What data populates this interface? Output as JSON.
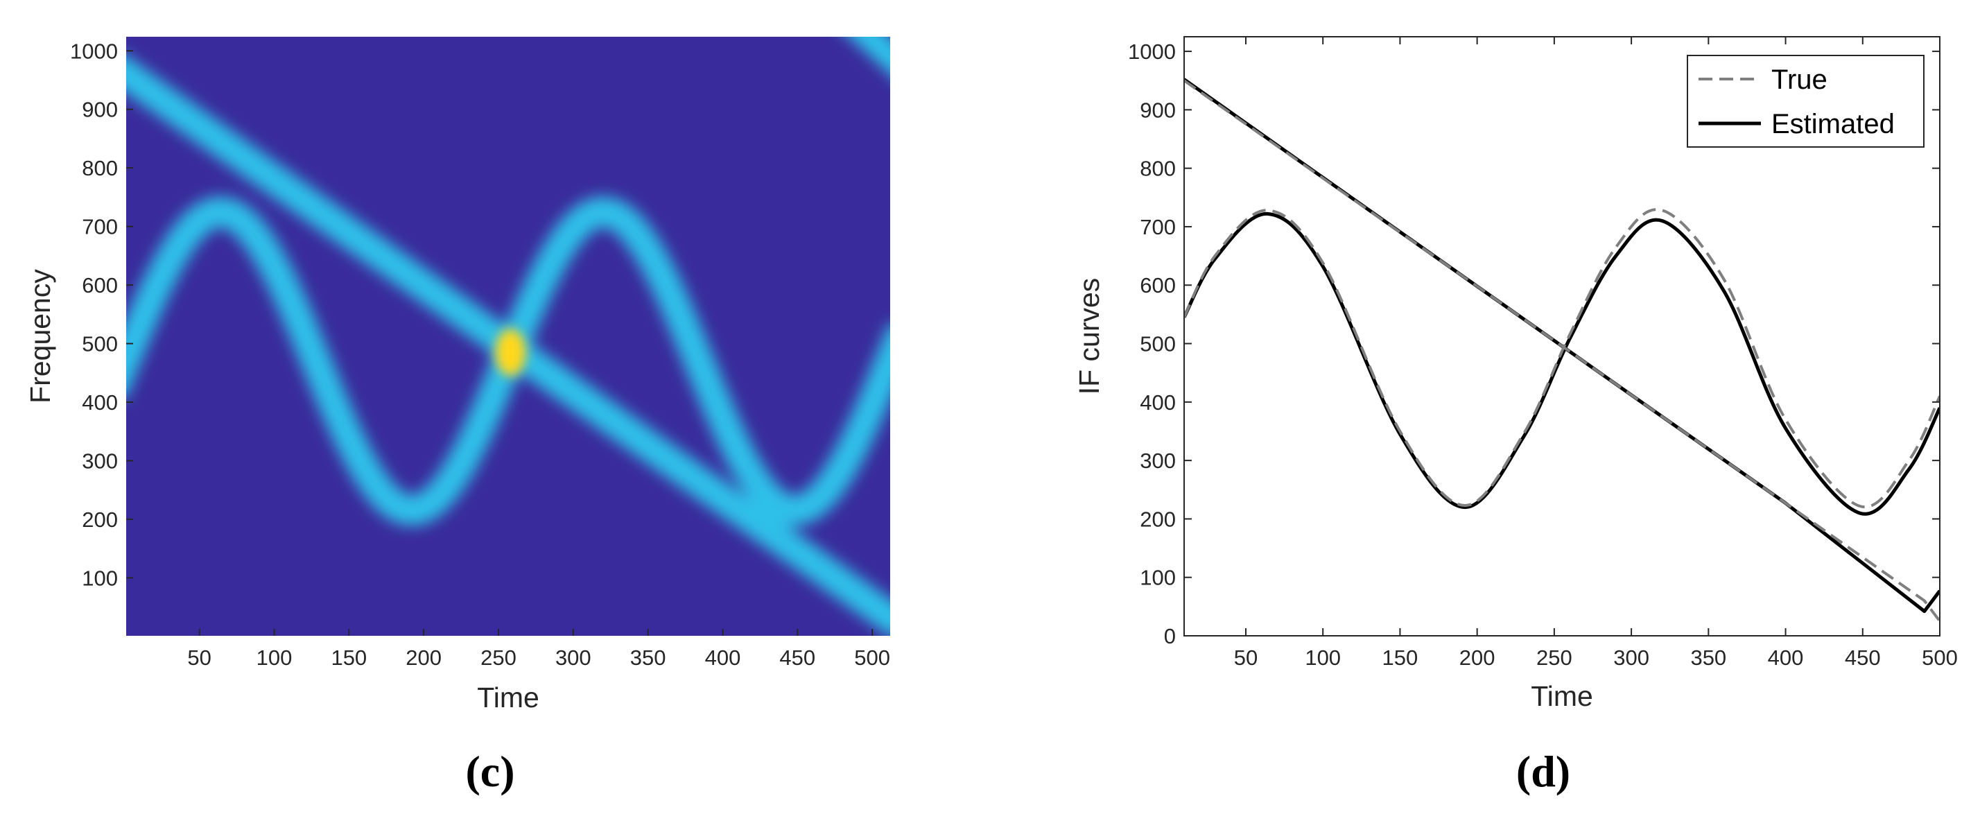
{
  "panels": {
    "left": "(c)",
    "right": "(d)"
  },
  "colors": {
    "background": "#3a2b9c",
    "ridge": "#2fc0e8",
    "peak": "#ffd81a"
  },
  "chart_data": [
    {
      "type": "heatmap",
      "title": "",
      "xlabel": "Time",
      "ylabel": "Frequency",
      "xlim": [
        1,
        512
      ],
      "ylim": [
        1,
        1024
      ],
      "xticks": [
        50,
        100,
        150,
        200,
        250,
        300,
        350,
        400,
        450,
        500
      ],
      "yticks": [
        100,
        200,
        300,
        400,
        500,
        600,
        700,
        800,
        900,
        1000
      ],
      "components": [
        {
          "kind": "linear",
          "freq_at_start": 960,
          "freq_at_end": 32
        },
        {
          "kind": "sinusoidal",
          "center": 470,
          "amplitude": 255,
          "period": 256,
          "peak_at_time": 64
        }
      ],
      "colormap": "parula"
    },
    {
      "type": "line",
      "title": "",
      "xlabel": "Time",
      "ylabel": "IF curves",
      "xlim": [
        10,
        500
      ],
      "ylim": [
        0,
        1025
      ],
      "xticks": [
        50,
        100,
        150,
        200,
        250,
        300,
        350,
        400,
        450,
        500
      ],
      "yticks": [
        0,
        100,
        200,
        300,
        400,
        500,
        600,
        700,
        800,
        900,
        1000
      ],
      "legend": {
        "position": "top-right",
        "entries": [
          "True",
          "Estimated"
        ]
      },
      "series": [
        {
          "name": "True",
          "style": "dashed",
          "color": "#7f7f7f",
          "curve": "linear",
          "x": [
            10,
            100,
            200,
            300,
            400,
            490,
            500
          ],
          "y": [
            950,
            783,
            598,
            412,
            227,
            60,
            25
          ]
        },
        {
          "name": "True",
          "style": "dashed",
          "color": "#7f7f7f",
          "curve": "sinusoidal",
          "x": [
            10,
            30,
            64,
            100,
            150,
            192,
            230,
            260,
            290,
            320,
            360,
            400,
            448,
            480,
            500
          ],
          "y": [
            545,
            650,
            728,
            638,
            350,
            223,
            345,
            515,
            665,
            728,
            610,
            370,
            222,
            300,
            410
          ]
        },
        {
          "name": "Estimated",
          "style": "solid",
          "color": "#000000",
          "curve": "linear",
          "x": [
            10,
            100,
            200,
            300,
            400,
            490,
            500
          ],
          "y": [
            952,
            784,
            598,
            412,
            227,
            42,
            77
          ]
        },
        {
          "name": "Estimated",
          "style": "solid",
          "color": "#000000",
          "curve": "sinusoidal",
          "x": [
            10,
            30,
            64,
            100,
            150,
            192,
            230,
            260,
            290,
            320,
            360,
            400,
            448,
            480,
            500
          ],
          "y": [
            545,
            645,
            722,
            632,
            345,
            220,
            340,
            508,
            650,
            710,
            590,
            355,
            210,
            285,
            390
          ]
        }
      ]
    }
  ]
}
